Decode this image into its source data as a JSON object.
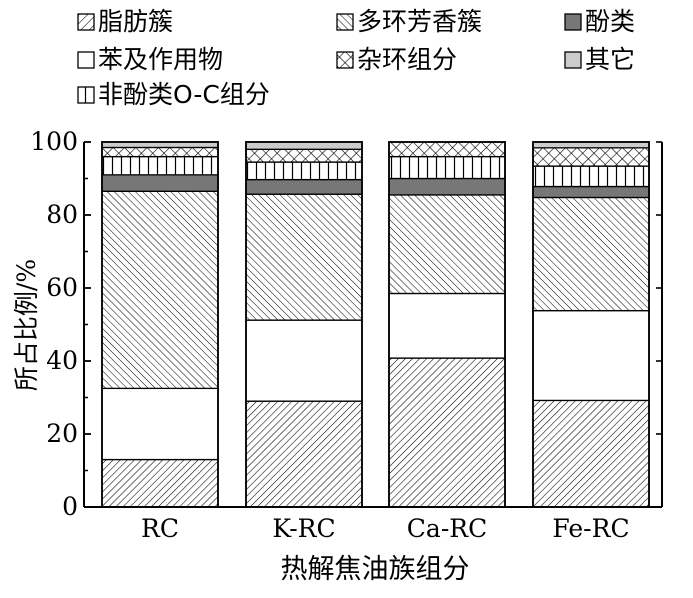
{
  "chart_data": {
    "type": "bar",
    "stacked": true,
    "categories": [
      "RC",
      "K-RC",
      "Ca-RC",
      "Fe-RC"
    ],
    "series": [
      {
        "name": "脂肪簇",
        "pattern": "diag-right-dense",
        "values": [
          13.0,
          29.0,
          40.8,
          29.2
        ]
      },
      {
        "name": "苯及作用物",
        "pattern": "solid-white",
        "values": [
          19.5,
          22.2,
          17.7,
          24.6
        ]
      },
      {
        "name": "多环芳香簇",
        "pattern": "diag-left",
        "values": [
          54.0,
          34.5,
          27.0,
          31.0
        ]
      },
      {
        "name": "酚类",
        "pattern": "solid-gray",
        "color": "#777777",
        "values": [
          4.5,
          4.0,
          4.5,
          3.0
        ]
      },
      {
        "name": "非酚类O-C组分",
        "pattern": "vertical",
        "values": [
          5.0,
          4.8,
          6.0,
          5.6
        ]
      },
      {
        "name": "杂环组分",
        "pattern": "crosshatch",
        "values": [
          2.5,
          3.5,
          4.0,
          5.0
        ]
      },
      {
        "name": "其它",
        "pattern": "solid-light",
        "color": "#cccccc",
        "values": [
          1.5,
          2.0,
          0.0,
          1.6
        ]
      }
    ],
    "ylabel": "所占比例/%",
    "xlabel": "热解焦油族组分",
    "ylim": [
      0,
      100
    ],
    "yticks": [
      0,
      20,
      40,
      60,
      80,
      100
    ],
    "grid": false,
    "legend_position": "top"
  },
  "legend": {
    "items": [
      {
        "label": "脂肪簇",
        "pattern": "diag-right"
      },
      {
        "label": "多环芳香簇",
        "pattern": "diag-left"
      },
      {
        "label": "酚类",
        "pattern": "solid-gray"
      },
      {
        "label": "苯及作用物",
        "pattern": "solid-white"
      },
      {
        "label": "杂环组分",
        "pattern": "crosshatch"
      },
      {
        "label": "其它",
        "pattern": "solid-light"
      },
      {
        "label": "非酚类O-C组分",
        "pattern": "vertical"
      }
    ]
  }
}
